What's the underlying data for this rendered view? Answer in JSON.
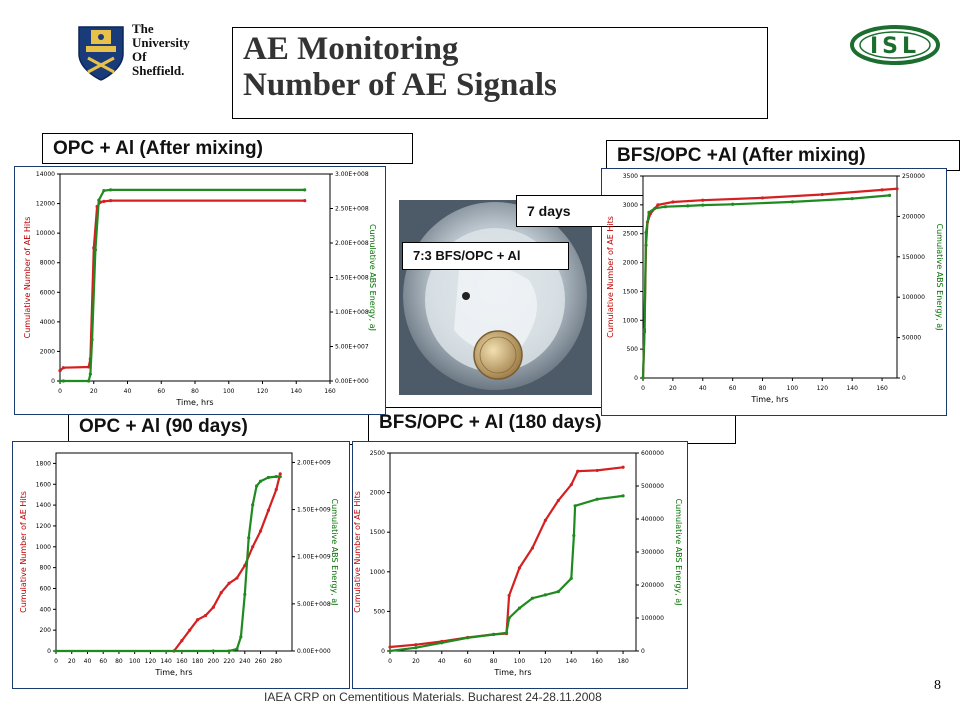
{
  "university": {
    "line1": "The",
    "line2": "University",
    "line3": "Of",
    "line4": "Sheffield."
  },
  "logo_right": {
    "text": "ISL",
    "colors": {
      "ring": "#1b6e2e",
      "letters": "#1b6e2e"
    }
  },
  "title": {
    "line1": "AE Monitoring",
    "line2": "Number of AE Signals"
  },
  "labels": {
    "tl": "OPC + Al (After mixing)",
    "tr": "BFS/OPC +Al (After mixing)",
    "bl": "OPC + Al (90 days)",
    "br": "BFS/OPC + Al (180 days)",
    "seven_days": "7 days",
    "photo_caption": "7:3 BFS/OPC + Al"
  },
  "footer": "IAEA CRP on Cementitious Materials. Bucharest 24-28.11.2008",
  "page_number": "8",
  "colors": {
    "hits": "#d42020",
    "energy": "#1f8a1f",
    "left_axis": "#c00000",
    "right_axis": "#007000"
  },
  "chart_data": [
    {
      "type": "line",
      "xlabel": "Time, hrs",
      "ylabel": "Cumulative Number of AE Hits",
      "y2label": "Cumulative ABS Energy, aJ",
      "xlim": [
        0,
        160
      ],
      "xticks": [
        0,
        20,
        40,
        60,
        80,
        100,
        120,
        140,
        160
      ],
      "ylim": [
        0,
        14000
      ],
      "yticks": [
        0,
        2000,
        4000,
        6000,
        8000,
        10000,
        12000,
        14000
      ],
      "y2lim": [
        0,
        300000000.0
      ],
      "y2ticks": [
        "0.00E+000",
        "5.00E+007",
        "1.00E+008",
        "1.50E+008",
        "2.00E+008",
        "2.50E+008",
        "3.00E+008"
      ],
      "series": [
        {
          "axis": "left",
          "x": [
            0,
            2,
            17,
            18,
            20,
            22,
            24,
            26,
            30,
            145
          ],
          "y": [
            700,
            900,
            950,
            1500,
            9000,
            11800,
            12100,
            12150,
            12200,
            12200
          ]
        },
        {
          "axis": "right",
          "x": [
            0,
            2,
            17,
            18,
            19,
            21,
            23,
            26,
            30,
            145
          ],
          "y": [
            0,
            0,
            0,
            10000000.0,
            60000000.0,
            190000000.0,
            262000000.0,
            276000000.0,
            277000000.0,
            277000000.0
          ]
        }
      ]
    },
    {
      "type": "line",
      "xlabel": "Time, hrs",
      "ylabel": "Cumulative Number of AE Hits",
      "y2label": "Cumulative ABS Energy, aJ",
      "xlim": [
        0,
        170
      ],
      "xticks": [
        0,
        20,
        40,
        60,
        80,
        100,
        120,
        140,
        160
      ],
      "ylim": [
        0,
        3500
      ],
      "yticks": [
        0,
        500,
        1000,
        1500,
        2000,
        2500,
        3000,
        3500
      ],
      "y2lim": [
        0,
        250000
      ],
      "y2ticks": [
        "0",
        "50000",
        "100000",
        "150000",
        "200000",
        "250000"
      ],
      "series": [
        {
          "axis": "left",
          "x": [
            0,
            1,
            2,
            3,
            5,
            10,
            20,
            40,
            80,
            120,
            160,
            170
          ],
          "y": [
            0,
            800,
            2300,
            2700,
            2850,
            3000,
            3050,
            3080,
            3120,
            3180,
            3260,
            3280
          ],
          "label": ""
        },
        {
          "axis": "right",
          "x": [
            0,
            1,
            2,
            4,
            8,
            15,
            30,
            40,
            60,
            100,
            140,
            165
          ],
          "y": [
            0,
            60000,
            180000,
            205000,
            210000,
            212000,
            213000,
            214000,
            215000,
            218000,
            222000,
            226000
          ]
        }
      ]
    },
    {
      "type": "line",
      "xlabel": "Time, hrs",
      "ylabel": "Cumulative Number of AE Hits",
      "y2label": "Cumulative ABS Energy, aJ",
      "xlim": [
        0,
        300
      ],
      "xticks": [
        0,
        20,
        40,
        60,
        80,
        100,
        120,
        140,
        160,
        180,
        200,
        220,
        240,
        260,
        280
      ],
      "ylim": [
        0,
        1900
      ],
      "yticks": [
        0,
        200,
        400,
        600,
        800,
        1000,
        1200,
        1400,
        1600,
        1800
      ],
      "y2lim": [
        0,
        2100000000.0
      ],
      "y2ticks": [
        "0.00E+000",
        "5.00E+008",
        "1.00E+009",
        "1.50E+009",
        "2.00E+009"
      ],
      "series": [
        {
          "axis": "left",
          "x": [
            150,
            160,
            170,
            180,
            190,
            200,
            210,
            220,
            230,
            240,
            250,
            260,
            270,
            280,
            285
          ],
          "y": [
            0,
            100,
            200,
            300,
            340,
            420,
            560,
            650,
            700,
            820,
            1000,
            1150,
            1350,
            1550,
            1700
          ],
          "label": ""
        },
        {
          "axis": "right",
          "x": [
            0,
            200,
            220,
            230,
            235,
            240,
            245,
            250,
            255,
            260,
            270,
            280,
            285
          ],
          "y": [
            0,
            0,
            0,
            20000000.0,
            150000000.0,
            600000000.0,
            1200000000.0,
            1550000000.0,
            1750000000.0,
            1800000000.0,
            1840000000.0,
            1850000000.0,
            1850000000.0
          ]
        }
      ]
    },
    {
      "type": "line",
      "xlabel": "Time, hrs",
      "ylabel": "Cumulative Number of AE Hits",
      "y2label": "Cumulative ABS Energy, aJ",
      "xlim": [
        0,
        190
      ],
      "xticks": [
        0,
        20,
        40,
        60,
        80,
        100,
        120,
        140,
        160,
        180
      ],
      "ylim": [
        0,
        2500
      ],
      "yticks": [
        0,
        500,
        1000,
        1500,
        2000,
        2500
      ],
      "y2lim": [
        0,
        600000
      ],
      "y2ticks": [
        "0",
        "100000",
        "200000",
        "300000",
        "400000",
        "500000",
        "600000"
      ],
      "series": [
        {
          "axis": "left",
          "x": [
            0,
            20,
            40,
            60,
            80,
            90,
            92,
            100,
            110,
            120,
            130,
            140,
            145,
            160,
            180
          ],
          "y": [
            50,
            80,
            120,
            170,
            210,
            220,
            700,
            1050,
            1300,
            1650,
            1900,
            2100,
            2270,
            2280,
            2320
          ]
        },
        {
          "axis": "right",
          "x": [
            0,
            20,
            40,
            60,
            80,
            90,
            92,
            100,
            110,
            120,
            130,
            140,
            142,
            143,
            160,
            180
          ],
          "y": [
            0,
            10000,
            25000,
            40000,
            50000,
            55000,
            100000,
            130000,
            160000,
            170000,
            180000,
            220000,
            350000,
            440000,
            460000,
            470000
          ]
        }
      ]
    }
  ]
}
